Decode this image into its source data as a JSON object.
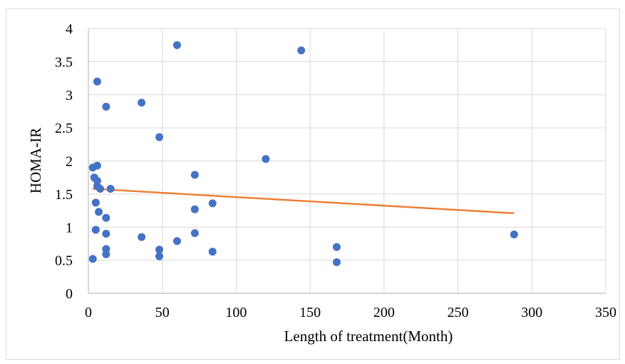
{
  "chart_data": {
    "type": "scatter",
    "title": "",
    "xlabel": "Length of treatment(Month)",
    "ylabel": "HOMA-IR",
    "xlim": [
      0,
      350
    ],
    "ylim": [
      0,
      4
    ],
    "x_ticks": [
      0,
      50,
      100,
      150,
      200,
      250,
      300,
      350
    ],
    "y_ticks": [
      0,
      0.5,
      1,
      1.5,
      2,
      2.5,
      3,
      3.5,
      4
    ],
    "x_tick_labels": [
      "0",
      "50",
      "100",
      "150",
      "200",
      "250",
      "300",
      "350"
    ],
    "y_tick_labels": [
      "0",
      "0.5",
      "1",
      "1.5",
      "2",
      "2.5",
      "3",
      "3.5",
      "4"
    ],
    "grid": true,
    "legend": "none",
    "points": [
      {
        "x": 3,
        "y": 0.52
      },
      {
        "x": 3,
        "y": 1.9
      },
      {
        "x": 4,
        "y": 1.75
      },
      {
        "x": 5,
        "y": 1.37
      },
      {
        "x": 5,
        "y": 0.96
      },
      {
        "x": 6,
        "y": 3.2
      },
      {
        "x": 6,
        "y": 1.93
      },
      {
        "x": 6,
        "y": 1.7
      },
      {
        "x": 6,
        "y": 1.62
      },
      {
        "x": 7,
        "y": 1.23
      },
      {
        "x": 8,
        "y": 1.58
      },
      {
        "x": 12,
        "y": 2.82
      },
      {
        "x": 12,
        "y": 1.14
      },
      {
        "x": 12,
        "y": 0.9
      },
      {
        "x": 12,
        "y": 0.67
      },
      {
        "x": 12,
        "y": 0.59
      },
      {
        "x": 15,
        "y": 1.58
      },
      {
        "x": 36,
        "y": 2.88
      },
      {
        "x": 36,
        "y": 0.85
      },
      {
        "x": 48,
        "y": 2.36
      },
      {
        "x": 48,
        "y": 0.66
      },
      {
        "x": 48,
        "y": 0.56
      },
      {
        "x": 60,
        "y": 3.75
      },
      {
        "x": 60,
        "y": 0.79
      },
      {
        "x": 72,
        "y": 1.79
      },
      {
        "x": 72,
        "y": 1.27
      },
      {
        "x": 72,
        "y": 0.91
      },
      {
        "x": 84,
        "y": 1.36
      },
      {
        "x": 84,
        "y": 0.63
      },
      {
        "x": 120,
        "y": 2.03
      },
      {
        "x": 144,
        "y": 3.67
      },
      {
        "x": 168,
        "y": 0.7
      },
      {
        "x": 168,
        "y": 0.47
      },
      {
        "x": 288,
        "y": 0.89
      }
    ],
    "trendline": {
      "type": "linear",
      "x": [
        3,
        288
      ],
      "y": [
        1.58,
        1.21
      ]
    },
    "colors": {
      "points": "#4472c4",
      "trendline": "#ed7d31",
      "grid": "#d9d9d9",
      "axis": "#bfbfbf"
    }
  }
}
